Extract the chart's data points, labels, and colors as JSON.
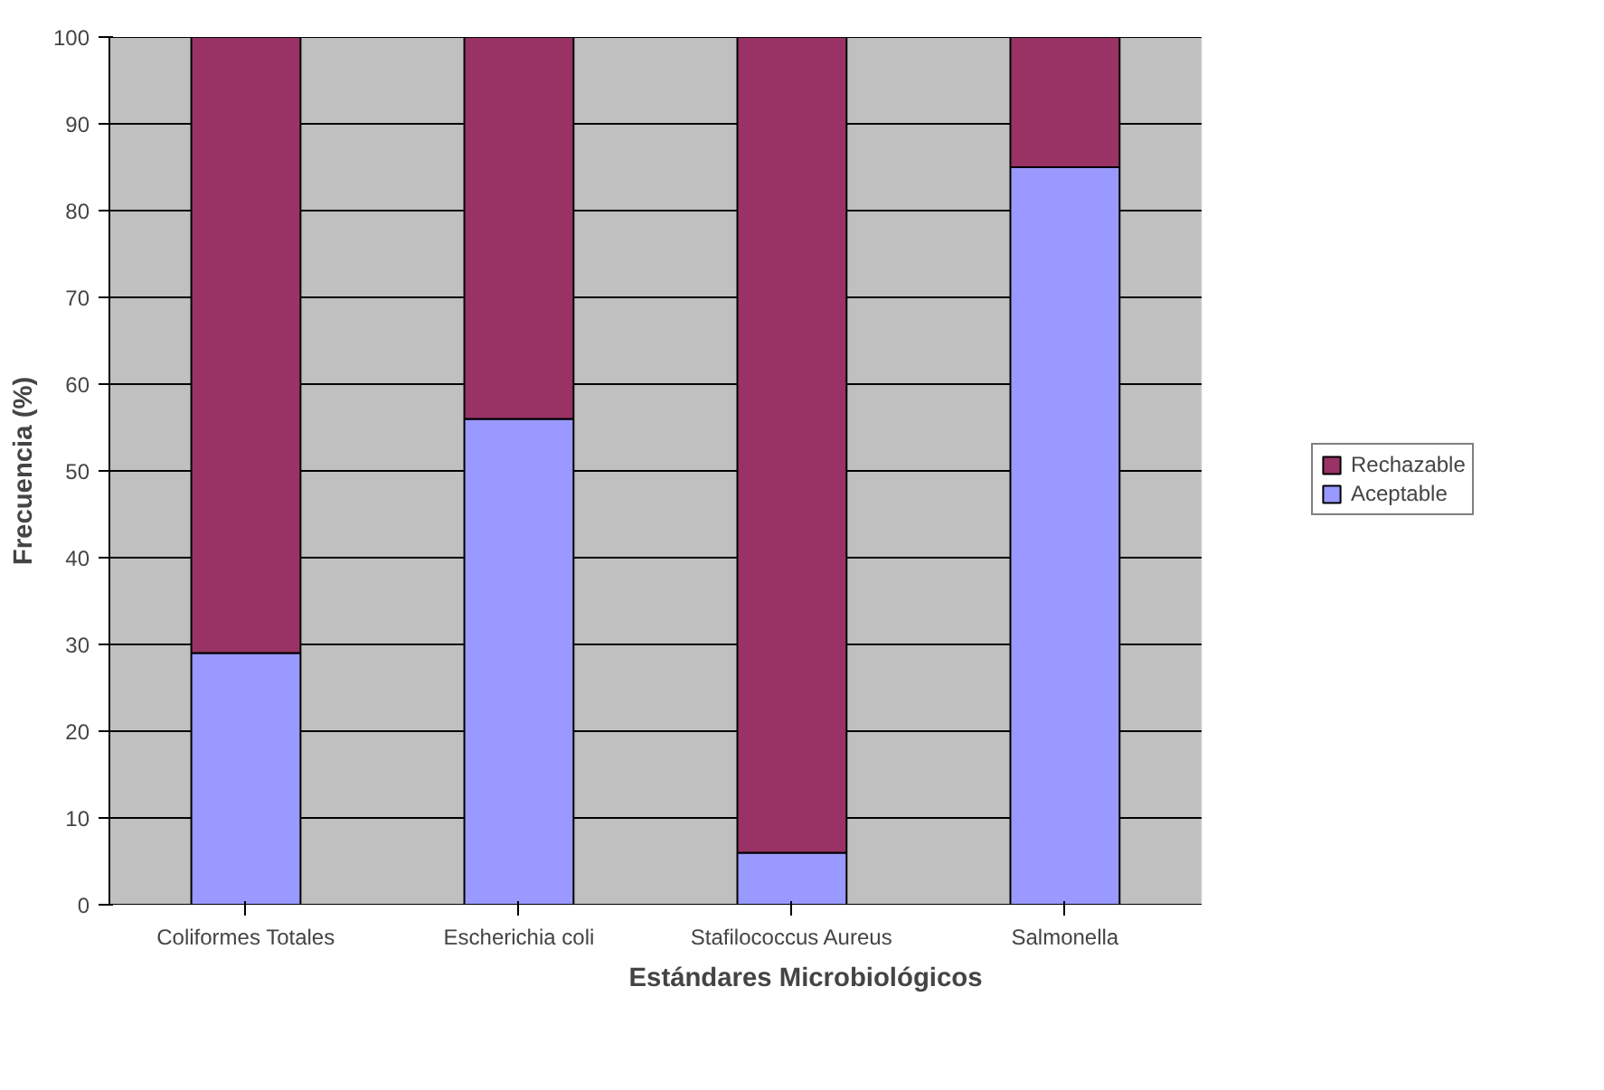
{
  "chart_data": {
    "type": "bar",
    "stacked": true,
    "xlabel": "Estándares Microbiológicos",
    "ylabel": "Frecuencia (%)",
    "categories": [
      "Coliformes Totales",
      "Escherichia coli",
      "Stafilococcus Aureus",
      "Salmonella"
    ],
    "series": [
      {
        "name": "Aceptable",
        "color": "#9999ff",
        "values": [
          29,
          56,
          6,
          85
        ]
      },
      {
        "name": "Rechazable",
        "color": "#993366",
        "values": [
          71,
          44,
          94,
          15
        ]
      }
    ],
    "ylim": [
      0,
      100
    ],
    "yticks": [
      0,
      10,
      20,
      30,
      40,
      50,
      60,
      70,
      80,
      90,
      100
    ],
    "grid": "y",
    "legend": "right"
  }
}
